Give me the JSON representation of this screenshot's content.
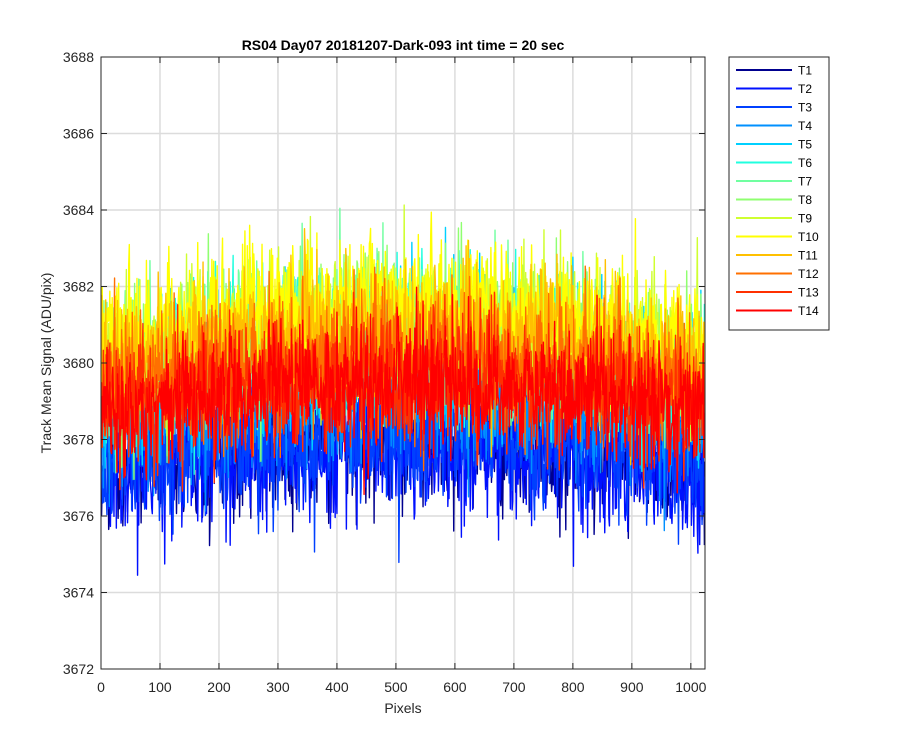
{
  "chart_data": {
    "type": "line",
    "title": "RS04 Day07 20181207-Dark-093 int time = 20 sec",
    "xlabel": "Pixels",
    "ylabel": "Track Mean Signal (ADU/pix)",
    "xlim": [
      0,
      1024
    ],
    "ylim": [
      3672,
      3688
    ],
    "x_ticks": [
      0,
      100,
      200,
      300,
      400,
      500,
      600,
      700,
      800,
      900,
      1000
    ],
    "y_ticks": [
      3672,
      3674,
      3676,
      3678,
      3680,
      3682,
      3684,
      3686,
      3688
    ],
    "grid": true,
    "legend_position": "outside-top-right",
    "n_points": 1024,
    "series": [
      {
        "name": "T1",
        "color": "#00008f",
        "baseline": 3677.2,
        "center_bump": 0.8,
        "noise_sd": 0.85
      },
      {
        "name": "T2",
        "color": "#0010ff",
        "baseline": 3677.0,
        "center_bump": 0.8,
        "noise_sd": 0.85
      },
      {
        "name": "T3",
        "color": "#0040ff",
        "baseline": 3677.4,
        "center_bump": 0.8,
        "noise_sd": 0.85
      },
      {
        "name": "T4",
        "color": "#0090ff",
        "baseline": 3678.3,
        "center_bump": 1.0,
        "noise_sd": 0.9
      },
      {
        "name": "T5",
        "color": "#00d0ff",
        "baseline": 3679.3,
        "center_bump": 1.0,
        "noise_sd": 0.9
      },
      {
        "name": "T6",
        "color": "#20ffdf",
        "baseline": 3679.5,
        "center_bump": 1.2,
        "noise_sd": 0.9
      },
      {
        "name": "T7",
        "color": "#70ffa0",
        "baseline": 3679.6,
        "center_bump": 1.3,
        "noise_sd": 0.9
      },
      {
        "name": "T8",
        "color": "#8fff70",
        "baseline": 3679.7,
        "center_bump": 1.3,
        "noise_sd": 0.9
      },
      {
        "name": "T9",
        "color": "#cfff30",
        "baseline": 3679.9,
        "center_bump": 1.2,
        "noise_sd": 0.9
      },
      {
        "name": "T10",
        "color": "#ffff00",
        "baseline": 3680.4,
        "center_bump": 1.2,
        "noise_sd": 0.9
      },
      {
        "name": "T11",
        "color": "#ffc000",
        "baseline": 3679.9,
        "center_bump": 1.0,
        "noise_sd": 0.9
      },
      {
        "name": "T12",
        "color": "#ff7000",
        "baseline": 3679.3,
        "center_bump": 0.9,
        "noise_sd": 0.85
      },
      {
        "name": "T13",
        "color": "#ff3000",
        "baseline": 3678.9,
        "center_bump": 0.7,
        "noise_sd": 0.85
      },
      {
        "name": "T14",
        "color": "#ff0000",
        "baseline": 3678.8,
        "center_bump": 0.6,
        "noise_sd": 0.8
      }
    ]
  }
}
